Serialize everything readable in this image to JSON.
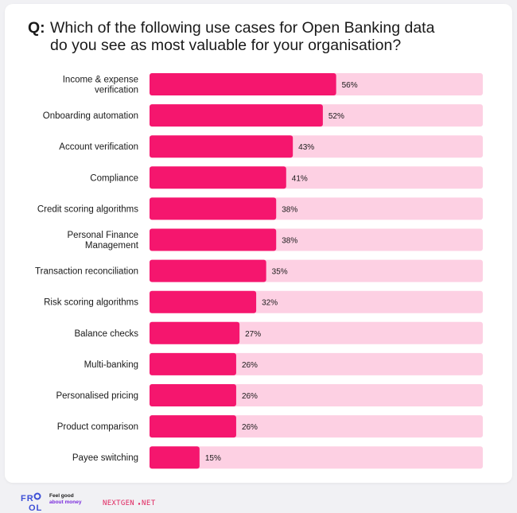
{
  "question": {
    "prefix": "Q:",
    "text": "Which of the following use cases for Open Banking data\ndo you see as most valuable for your organisation?"
  },
  "chart_data": {
    "type": "bar",
    "orientation": "horizontal",
    "categories": [
      "Income & expense\nverification",
      "Onboarding automation",
      "Account verification",
      "Compliance",
      "Credit scoring algorithms",
      "Personal Finance\nManagement",
      "Transaction reconciliation",
      "Risk scoring algorithms",
      "Balance checks",
      "Multi-banking",
      "Personalised pricing",
      "Product comparison",
      "Payee switching"
    ],
    "values": [
      56,
      52,
      43,
      41,
      38,
      38,
      35,
      32,
      27,
      26,
      26,
      26,
      15
    ],
    "value_suffix": "%",
    "xlim": [
      0,
      100
    ],
    "grid": false,
    "legend": "none",
    "colors": {
      "bar": "#f5166e",
      "track": "#fdd0e3",
      "label": "#1a1a1a"
    }
  },
  "footer": {
    "brand_logo": "FROL",
    "tagline_line1": "Feel good",
    "tagline_line2": "about money",
    "partner_logo": "NEXTGEN.NET"
  }
}
